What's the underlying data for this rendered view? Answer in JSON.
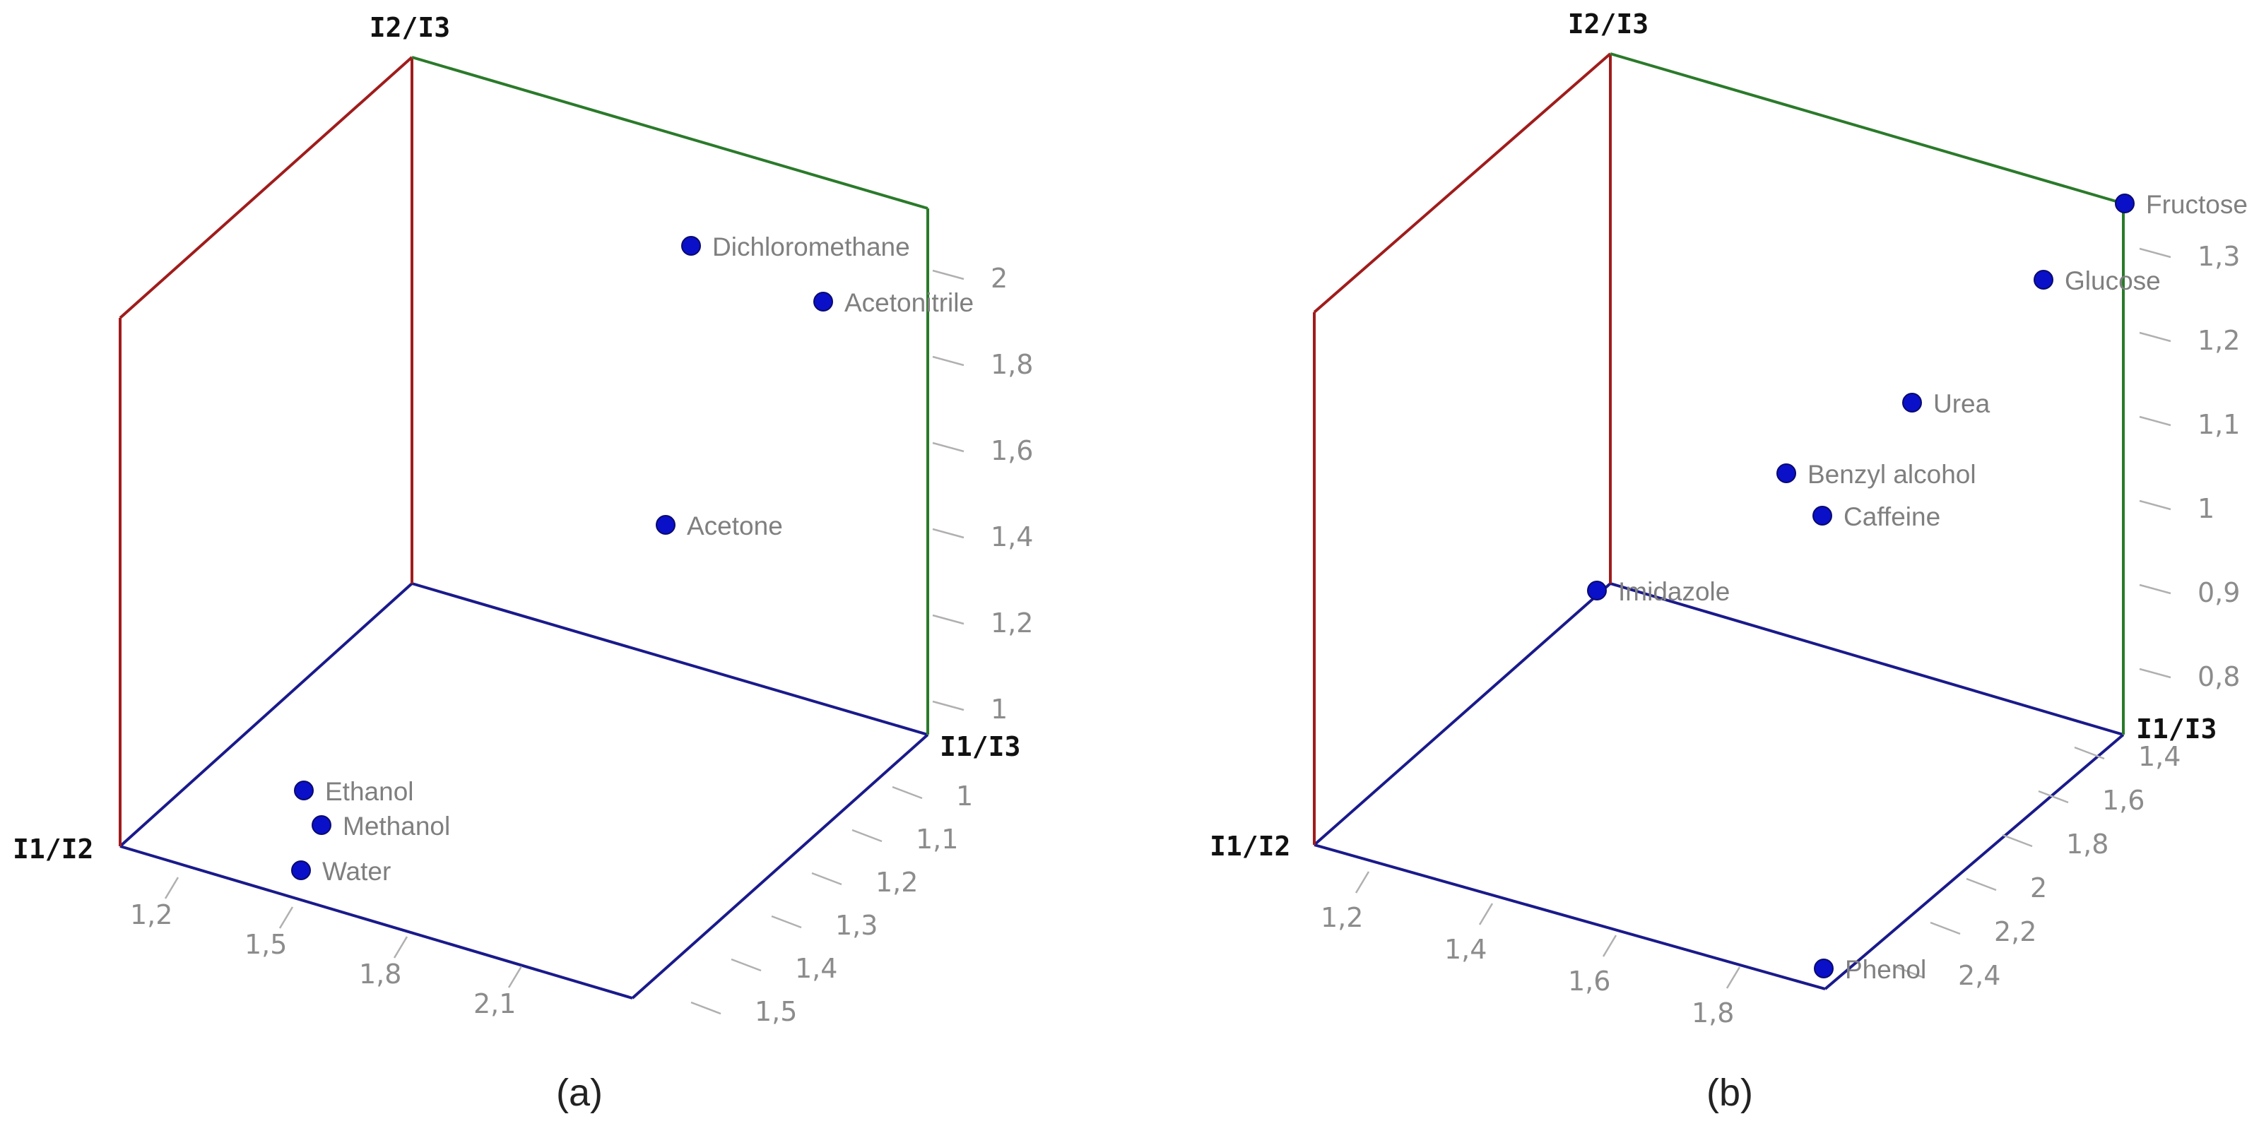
{
  "colors": {
    "red_edge": "#a01c1c",
    "green_edge": "#2a7a2a",
    "blue_edge": "#1a1a8c",
    "point": "#0a10c8"
  },
  "chart_data": [
    {
      "type": "scatter",
      "panel_label": "(a)",
      "axes": {
        "x_name": "I1/I2",
        "y_name": "I1/I3",
        "z_name": "I2/I3"
      },
      "x_ticks": [
        "1,2",
        "1,5",
        "1,8",
        "2,1"
      ],
      "y_ticks": [
        "1",
        "1,1",
        "1,2",
        "1,3",
        "1,4",
        "1,5"
      ],
      "z_ticks": [
        "1",
        "1,2",
        "1,4",
        "1,6",
        "1,8",
        "2"
      ],
      "points": [
        {
          "label": "Dichloromethane"
        },
        {
          "label": "Acetonitrile"
        },
        {
          "label": "Acetone"
        },
        {
          "label": "Ethanol"
        },
        {
          "label": "Methanol"
        },
        {
          "label": "Water"
        }
      ]
    },
    {
      "type": "scatter",
      "panel_label": "(b)",
      "axes": {
        "x_name": "I1/I2",
        "y_name": "I1/I3",
        "z_name": "I2/I3"
      },
      "x_ticks": [
        "1,2",
        "1,4",
        "1,6",
        "1,8"
      ],
      "y_ticks": [
        "1,4",
        "1,6",
        "1,8",
        "2",
        "2,2",
        "2,4"
      ],
      "z_ticks": [
        "0,8",
        "0,9",
        "1",
        "1,1",
        "1,2",
        "1,3"
      ],
      "points": [
        {
          "label": "Fructose"
        },
        {
          "label": "Glucose"
        },
        {
          "label": "Urea"
        },
        {
          "label": "Benzyl alcohol"
        },
        {
          "label": "Caffeine"
        },
        {
          "label": "Imidazole"
        },
        {
          "label": "Phenol"
        }
      ]
    }
  ]
}
